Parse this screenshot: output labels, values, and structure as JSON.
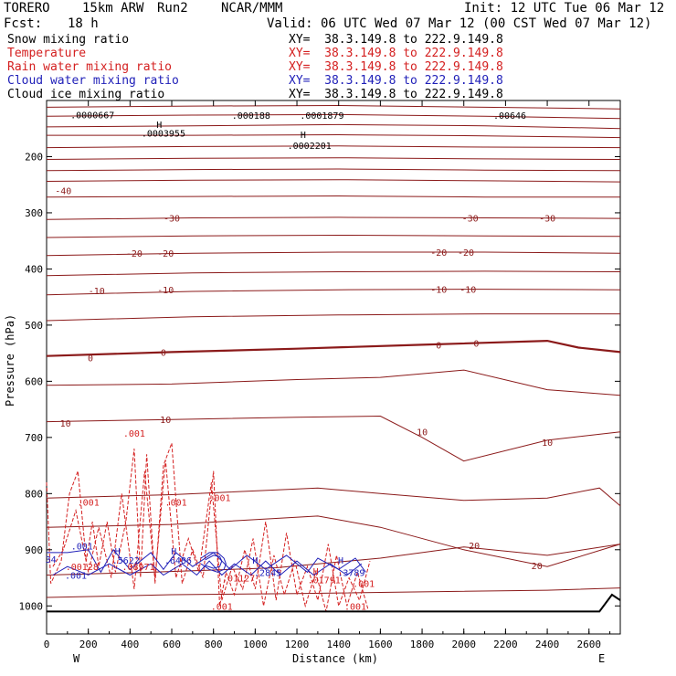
{
  "header": {
    "model": "TORERO",
    "resolution": "15km ARW",
    "run": "Run2",
    "org": "NCAR/MMM",
    "init": "Init: 12 UTC Tue 06 Mar 12",
    "fcst_label": "Fcst:",
    "fcst_value": "18 h",
    "valid": "Valid: 06 UTC Wed 07 Mar 12 (00 CST Wed 07 Mar 12)"
  },
  "legend": [
    {
      "label": "Snow mixing ratio",
      "xy": "XY=  38.3.149.8 to 222.9.149.8",
      "color": "#000000"
    },
    {
      "label": "Temperature",
      "xy": "XY=  38.3.149.8 to 222.9.149.8",
      "color": "#d42020"
    },
    {
      "label": "Rain water mixing ratio",
      "xy": "XY=  38.3.149.8 to 222.9.149.8",
      "color": "#d42020"
    },
    {
      "label": "Cloud water mixing ratio",
      "xy": "XY=  38.3.149.8 to 222.9.149.8",
      "color": "#1f1fb8"
    },
    {
      "label": "Cloud ice mixing ratio",
      "xy": "XY=  38.3.149.8 to 222.9.149.8",
      "color": "#000000"
    }
  ],
  "chart_data": {
    "type": "line",
    "xlabel": "Distance (km)",
    "ylabel": "Pressure (hPa)",
    "xlim": [
      0,
      2750
    ],
    "ylim": [
      1050,
      100
    ],
    "x_ticks": [
      0,
      200,
      400,
      600,
      800,
      1000,
      1200,
      1400,
      1600,
      1800,
      2000,
      2200,
      2400,
      2600
    ],
    "y_ticks": [
      200,
      300,
      400,
      500,
      600,
      700,
      800,
      900,
      1000
    ],
    "west_label": "W",
    "east_label": "E",
    "colors": {
      "temperature": "#8b1a1a",
      "rain": "#d42020",
      "cloud_water": "#1f1fb8",
      "ice": "#000000"
    },
    "temperature_isotherms": [
      {
        "level": -50,
        "x": [
          0,
          700,
          1400,
          2100,
          2750
        ],
        "p": [
          112,
          110,
          109,
          112,
          115
        ]
      },
      {
        "level": -50,
        "x": [
          0,
          700,
          1400,
          2100,
          2750
        ],
        "p": [
          128,
          126,
          125,
          128,
          132
        ]
      },
      {
        "level": -50,
        "x": [
          0,
          700,
          1400,
          2100,
          2750
        ],
        "p": [
          147,
          145,
          143,
          145,
          150
        ]
      },
      {
        "level": -50,
        "x": [
          0,
          700,
          1400,
          2100,
          2750
        ],
        "p": [
          162,
          162,
          161,
          163,
          166
        ]
      },
      {
        "level": -45,
        "x": [
          0,
          700,
          1400,
          2100,
          2750
        ],
        "p": [
          184,
          182,
          181,
          183,
          184
        ]
      },
      {
        "level": -45,
        "x": [
          0,
          700,
          1400,
          2100,
          2750
        ],
        "p": [
          205,
          203,
          202,
          204,
          205
        ]
      },
      {
        "level": -40,
        "x": [
          0,
          700,
          1400,
          2100,
          2750
        ],
        "p": [
          225,
          223,
          222,
          224,
          225
        ]
      },
      {
        "level": -40,
        "x": [
          0,
          700,
          1400,
          2100,
          2750
        ],
        "p": [
          244,
          242,
          241,
          243,
          245
        ]
      },
      {
        "level": -35,
        "x": [
          0,
          700,
          1400,
          2100,
          2750
        ],
        "p": [
          272,
          271,
          270,
          272,
          272
        ]
      },
      {
        "level": -30,
        "x": [
          0,
          700,
          1400,
          2100,
          2750
        ],
        "p": [
          312,
          309,
          308,
          309,
          310
        ]
      },
      {
        "level": -25,
        "x": [
          0,
          700,
          1400,
          2100,
          2750
        ],
        "p": [
          344,
          341,
          340,
          341,
          342
        ]
      },
      {
        "level": -20,
        "x": [
          0,
          700,
          1400,
          2100,
          2750
        ],
        "p": [
          376,
          372,
          370,
          370,
          372
        ]
      },
      {
        "level": -15,
        "x": [
          0,
          700,
          1400,
          2100,
          2750
        ],
        "p": [
          412,
          407,
          405,
          404,
          405
        ]
      },
      {
        "level": -10,
        "x": [
          0,
          700,
          1400,
          2100,
          2750
        ],
        "p": [
          446,
          440,
          437,
          436,
          437
        ]
      },
      {
        "level": -5,
        "x": [
          0,
          700,
          1400,
          2100,
          2750
        ],
        "p": [
          492,
          485,
          482,
          480,
          480
        ]
      },
      {
        "level": 0,
        "x": [
          0,
          600,
          1200,
          1800,
          2400,
          2550,
          2750
        ],
        "p": [
          555,
          548,
          542,
          535,
          528,
          540,
          548
        ]
      },
      {
        "level": 5,
        "x": [
          0,
          600,
          1200,
          1600,
          2000,
          2400,
          2750
        ],
        "p": [
          607,
          605,
          597,
          593,
          580,
          615,
          625
        ]
      },
      {
        "level": 10,
        "x": [
          0,
          600,
          1200,
          1600,
          1800,
          2000,
          2400,
          2750
        ],
        "p": [
          672,
          668,
          664,
          662,
          700,
          742,
          705,
          690
        ]
      },
      {
        "level": 15,
        "x": [
          0,
          600,
          1300,
          1600,
          2000,
          2400,
          2650,
          2750
        ],
        "p": [
          808,
          802,
          790,
          800,
          812,
          808,
          790,
          822
        ]
      },
      {
        "level": 20,
        "x": [
          0,
          600,
          1300,
          1600,
          2000,
          2400,
          2750
        ],
        "p": [
          860,
          855,
          840,
          860,
          900,
          930,
          890
        ]
      },
      {
        "level": 20,
        "x": [
          0,
          500,
          1100,
          1600,
          2000,
          2400,
          2750
        ],
        "p": [
          945,
          940,
          932,
          915,
          895,
          910,
          890
        ]
      },
      {
        "level": 25,
        "x": [
          0,
          600,
          1200,
          1800,
          2400,
          2750
        ],
        "p": [
          985,
          980,
          978,
          975,
          972,
          968
        ]
      }
    ],
    "isotherm_labels": [
      {
        "text": "-40",
        "x": 80,
        "p": 260
      },
      {
        "text": "-30",
        "x": 600,
        "p": 309
      },
      {
        "text": "-30",
        "x": 2030,
        "p": 309
      },
      {
        "text": "-30",
        "x": 2400,
        "p": 309
      },
      {
        "text": "-20",
        "x": 420,
        "p": 372
      },
      {
        "text": "-20",
        "x": 570,
        "p": 372
      },
      {
        "text": "-20",
        "x": 1880,
        "p": 370
      },
      {
        "text": "-20",
        "x": 2010,
        "p": 370
      },
      {
        "text": "-10",
        "x": 240,
        "p": 438
      },
      {
        "text": "-10",
        "x": 570,
        "p": 437
      },
      {
        "text": "-10",
        "x": 1880,
        "p": 436
      },
      {
        "text": "-10",
        "x": 2020,
        "p": 436
      },
      {
        "text": "0",
        "x": 210,
        "p": 558
      },
      {
        "text": "0",
        "x": 560,
        "p": 548
      },
      {
        "text": "0",
        "x": 1880,
        "p": 535
      },
      {
        "text": "0",
        "x": 2060,
        "p": 532
      },
      {
        "text": "10",
        "x": 90,
        "p": 674
      },
      {
        "text": "10",
        "x": 570,
        "p": 668
      },
      {
        "text": "10",
        "x": 1800,
        "p": 690
      },
      {
        "text": "10",
        "x": 2400,
        "p": 708
      },
      {
        "text": "20",
        "x": 2050,
        "p": 892
      },
      {
        "text": "20",
        "x": 2350,
        "p": 928
      }
    ],
    "rain_contours": [
      {
        "level": 0.001,
        "x": [
          0,
          20,
          70,
          110,
          150,
          190,
          220,
          250,
          290,
          330,
          380,
          420,
          450,
          480,
          520,
          560,
          600,
          650,
          700,
          750,
          800,
          830,
          860,
          900,
          950,
          1000,
          1050,
          1100,
          1150,
          1200,
          1250,
          1300,
          1350,
          1400,
          1450,
          1500,
          1550
        ],
        "p": [
          780,
          960,
          920,
          800,
          760,
          920,
          850,
          930,
          850,
          940,
          850,
          720,
          950,
          730,
          960,
          750,
          710,
          960,
          900,
          950,
          760,
          1000,
          940,
          980,
          900,
          970,
          850,
          990,
          870,
          980,
          930,
          990,
          890,
          1000,
          950,
          990,
          920
        ]
      },
      {
        "level": 0.001,
        "x": [
          30,
          80,
          140,
          200,
          250,
          310,
          360,
          420,
          470,
          520,
          570,
          620,
          680,
          730,
          790,
          840,
          890,
          940,
          990,
          1040,
          1090,
          1140,
          1190,
          1240,
          1290,
          1340,
          1390,
          1440,
          1490,
          1540
        ],
        "p": [
          930,
          900,
          830,
          940,
          860,
          950,
          800,
          970,
          760,
          950,
          740,
          950,
          880,
          940,
          780,
          990,
          930,
          970,
          880,
          1000,
          910,
          980,
          920,
          1000,
          940,
          1010,
          910,
          1000,
          940,
          1005
        ]
      }
    ],
    "rain_labels": [
      {
        "text": ".001",
        "x": 420,
        "p": 692
      },
      {
        "text": ".001",
        "x": 200,
        "p": 815
      },
      {
        "text": ".001",
        "x": 620,
        "p": 815
      },
      {
        "text": ".001",
        "x": 830,
        "p": 807
      },
      {
        "text": ".001",
        "x": 1520,
        "p": 960
      },
      {
        "text": ".001",
        "x": 1480,
        "p": 1000
      },
      {
        "text": ".001",
        "x": 840,
        "p": 1000
      },
      {
        "text": ".00128",
        "x": 170,
        "p": 930
      },
      {
        "text": ".08971",
        "x": 440,
        "p": 930
      },
      {
        "text": ".01127",
        "x": 920,
        "p": 950
      },
      {
        "text": ".01791",
        "x": 1330,
        "p": 953
      },
      {
        "text": "H",
        "x": 1290,
        "p": 938
      }
    ],
    "cloud_water_contours": [
      {
        "level": 0.001,
        "x": [
          0,
          100,
          200,
          260,
          320,
          400,
          500,
          560,
          620,
          700,
          800,
          880,
          960,
          1050,
          1150,
          1250,
          1300,
          1400,
          1480,
          1530
        ],
        "p": [
          905,
          905,
          900,
          940,
          900,
          935,
          905,
          935,
          905,
          930,
          905,
          935,
          910,
          935,
          910,
          940,
          915,
          935,
          915,
          940
        ]
      },
      {
        "level": 0.001,
        "x": [
          30,
          100,
          200,
          300,
          400,
          500,
          560,
          650,
          720,
          780,
          840,
          900,
          980,
          1050,
          1120,
          1200,
          1280,
          1360,
          1440,
          1510
        ],
        "p": [
          945,
          930,
          945,
          925,
          945,
          925,
          945,
          925,
          945,
          920,
          945,
          925,
          945,
          920,
          945,
          920,
          945,
          925,
          945,
          925
        ]
      },
      {
        "level": 0.05,
        "x": [
          740,
          780,
          820,
          850,
          860,
          850,
          820,
          780,
          740
        ],
        "p": [
          915,
          905,
          905,
          915,
          925,
          935,
          940,
          935,
          925
        ]
      },
      {
        "level": 0.1,
        "x": [
          760,
          800,
          830,
          840,
          830,
          800,
          760
        ],
        "p": [
          918,
          910,
          912,
          920,
          930,
          933,
          928
        ]
      }
    ],
    "cloud_water_labels": [
      {
        "text": ".001",
        "x": 170,
        "p": 893
      },
      {
        "text": ".001",
        "x": 140,
        "p": 945
      },
      {
        "text": "34",
        "x": 20,
        "p": 917
      },
      {
        "text": "H",
        "x": 340,
        "p": 902
      },
      {
        "text": ".5622",
        "x": 380,
        "p": 918
      },
      {
        "text": "H",
        "x": 610,
        "p": 902
      },
      {
        "text": ".6486",
        "x": 630,
        "p": 918
      },
      {
        "text": "H",
        "x": 1000,
        "p": 918
      },
      {
        "text": ".2845",
        "x": 1060,
        "p": 940
      },
      {
        "text": "H",
        "x": 1410,
        "p": 918
      },
      {
        "text": ".3789",
        "x": 1460,
        "p": 940
      }
    ],
    "ice_labels": [
      {
        "text": ".0000667",
        "x": 220,
        "p": 125
      },
      {
        "text": ".000188",
        "x": 980,
        "p": 126
      },
      {
        "text": ".0001879",
        "x": 1320,
        "p": 126
      },
      {
        "text": ".00646",
        "x": 2220,
        "p": 126
      },
      {
        "text": "H",
        "x": 540,
        "p": 142
      },
      {
        "text": ".0003955",
        "x": 560,
        "p": 158
      },
      {
        "text": "H",
        "x": 1230,
        "p": 160
      },
      {
        "text": ".0002201",
        "x": 1260,
        "p": 180
      }
    ],
    "terrain": {
      "x": [
        0,
        500,
        1000,
        1500,
        2000,
        2500,
        2650,
        2710,
        2750
      ],
      "p": [
        1010,
        1010,
        1010,
        1010,
        1010,
        1010,
        1010,
        980,
        990
      ]
    }
  }
}
